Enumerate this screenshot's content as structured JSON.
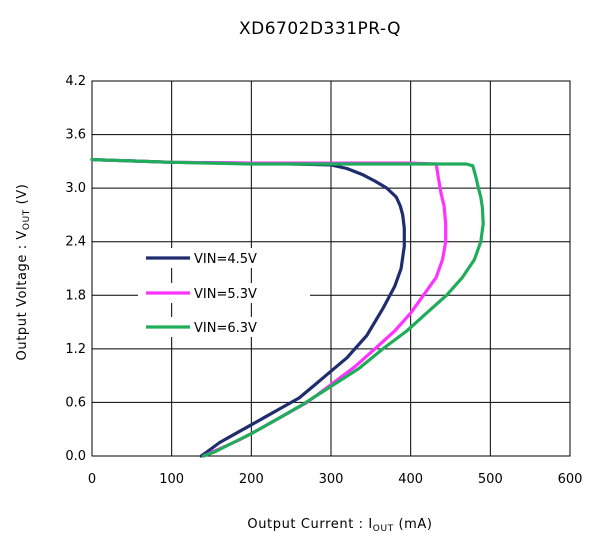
{
  "chart_data": {
    "type": "line",
    "title": "XD6702D331PR-Q",
    "xlabel": {
      "main": "Output Current : I",
      "sub": "OUT",
      "unit": " (mA)"
    },
    "ylabel": {
      "main": "Output Voltage : V",
      "sub": "OUT",
      "unit": " (V)"
    },
    "xlim": [
      0,
      600
    ],
    "ylim": [
      0,
      4.2
    ],
    "xticks": [
      0,
      100,
      200,
      300,
      400,
      500,
      600
    ],
    "yticks": [
      0.0,
      0.6,
      1.2,
      1.8,
      2.4,
      3.0,
      3.6,
      4.2
    ],
    "ytick_labels": [
      "0.0",
      "0.6",
      "1.2",
      "1.8",
      "2.4",
      "3.0",
      "3.6",
      "4.2"
    ],
    "grid": true,
    "legend_position": "center-left",
    "series": [
      {
        "name": "VIN=4.5V",
        "color": "#1f2d6e",
        "x": [
          0,
          100,
          200,
          300,
          320,
          340,
          355,
          370,
          382,
          387,
          390,
          392,
          392,
          388,
          380,
          365,
          345,
          320,
          300,
          280,
          260,
          240,
          220,
          200,
          180,
          160,
          145,
          137
        ],
        "y": [
          3.32,
          3.29,
          3.28,
          3.26,
          3.22,
          3.15,
          3.08,
          3.0,
          2.9,
          2.8,
          2.7,
          2.55,
          2.35,
          2.1,
          1.9,
          1.65,
          1.35,
          1.1,
          0.95,
          0.8,
          0.65,
          0.55,
          0.45,
          0.35,
          0.25,
          0.15,
          0.05,
          0.0
        ]
      },
      {
        "name": "VIN=5.3V",
        "color": "#ff33ff",
        "x": [
          0,
          100,
          200,
          300,
          400,
          432,
          435,
          438,
          442,
          444,
          444,
          440,
          432,
          420,
          400,
          380,
          355,
          330,
          300,
          270,
          240,
          210,
          185,
          165,
          150,
          140
        ],
        "y": [
          3.32,
          3.29,
          3.28,
          3.28,
          3.28,
          3.27,
          3.1,
          2.95,
          2.8,
          2.6,
          2.4,
          2.2,
          2.0,
          1.85,
          1.6,
          1.4,
          1.2,
          1.0,
          0.8,
          0.6,
          0.45,
          0.3,
          0.18,
          0.1,
          0.04,
          0.0
        ]
      },
      {
        "name": "VIN=6.3V",
        "color": "#1fad5a",
        "x": [
          0,
          100,
          200,
          300,
          400,
          470,
          478,
          482,
          485,
          488,
          490,
          491,
          488,
          480,
          465,
          445,
          420,
          395,
          365,
          335,
          300,
          265,
          230,
          200,
          175,
          155,
          140
        ],
        "y": [
          3.32,
          3.29,
          3.27,
          3.27,
          3.27,
          3.27,
          3.25,
          3.12,
          3.0,
          2.9,
          2.78,
          2.6,
          2.4,
          2.2,
          2.0,
          1.8,
          1.6,
          1.4,
          1.2,
          0.98,
          0.78,
          0.58,
          0.4,
          0.25,
          0.14,
          0.05,
          0.0
        ]
      }
    ]
  }
}
